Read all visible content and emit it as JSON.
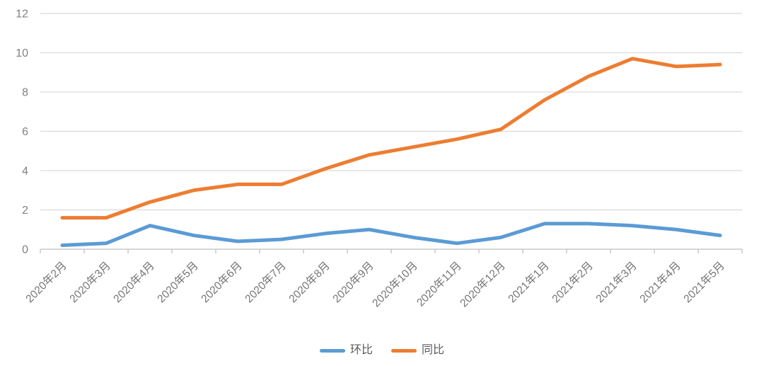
{
  "chart_data": {
    "type": "line",
    "title": "",
    "categories": [
      "2020年2月",
      "2020年3月",
      "2020年4月",
      "2020年5月",
      "2020年6月",
      "2020年7月",
      "2020年8月",
      "2020年9月",
      "2020年10月",
      "2020年11月",
      "2020年12月",
      "2021年1月",
      "2021年2月",
      "2021年3月",
      "2021年4月",
      "2021年5月"
    ],
    "series": [
      {
        "name": "环比",
        "color": "#5B9BD5",
        "values": [
          0.2,
          0.3,
          1.2,
          0.7,
          0.4,
          0.5,
          0.8,
          1.0,
          0.6,
          0.3,
          0.6,
          1.3,
          1.3,
          1.2,
          1.0,
          0.7
        ]
      },
      {
        "name": "同比",
        "color": "#ED7D31",
        "values": [
          1.6,
          1.6,
          2.4,
          3.0,
          3.3,
          3.3,
          4.1,
          4.8,
          5.2,
          5.6,
          6.1,
          7.6,
          8.8,
          9.7,
          9.3,
          9.4
        ]
      }
    ],
    "xlabel": "",
    "ylabel": "",
    "ylim": [
      0,
      12
    ],
    "yticks": [
      0,
      2,
      4,
      6,
      8,
      10,
      12
    ],
    "grid": "horizontal",
    "legend_position": "bottom-center",
    "x_label_rotation_deg": -45,
    "colors": {
      "gridline": "#D9D9D9",
      "axis_line": "#BFBFBF",
      "y_tick_label": "#808080",
      "x_tick_label": "#757575",
      "legend_text": "#595959",
      "background": "#FFFFFF"
    }
  }
}
